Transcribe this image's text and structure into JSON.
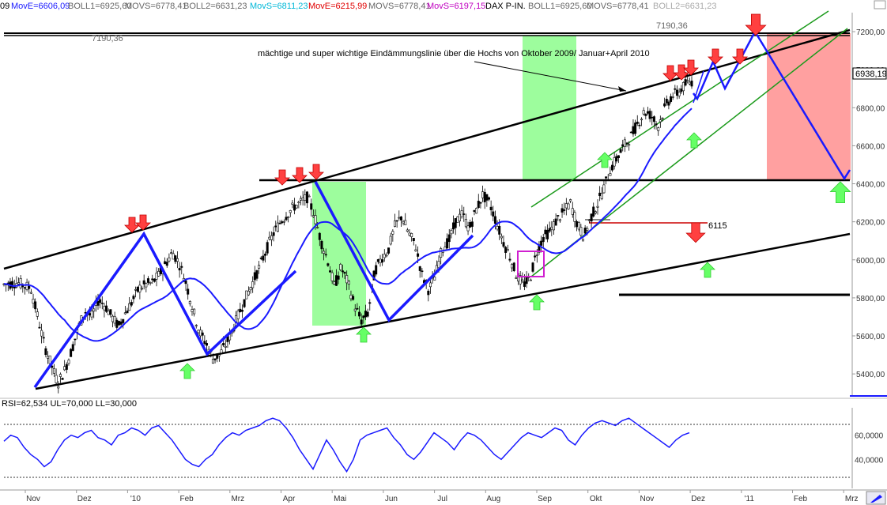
{
  "header": {
    "items": [
      {
        "text": "MovE=6606,09",
        "color": "#1a1aff"
      },
      {
        "text": "BOLL1=6925,60",
        "color": "#666666"
      },
      {
        "text": "MOVS=6778,41",
        "color": "#666666"
      },
      {
        "text": "BOLL2=6631,23",
        "color": "#666666"
      },
      {
        "text": "MovS=6811,23",
        "color": "#00b8d8"
      },
      {
        "text": "MovE=6215,99",
        "color": "#e00000"
      },
      {
        "text": "MOVS=6778,41",
        "color": "#666666"
      },
      {
        "text": "MovS=6197,15",
        "color": "#c000c0"
      },
      {
        "text": "DAX P-IN.",
        "color": "#000000"
      },
      {
        "text": "BOLL1=6925,60",
        "color": "#666666"
      },
      {
        "text": "MOVS=6778,41",
        "color": "#666666"
      },
      {
        "text": "BOLL2=6631,23",
        "color": "#aaaaaa"
      }
    ],
    "year_stub": "09"
  },
  "chart_data": {
    "type": "candlestick",
    "instrument": "DAX P-IN.",
    "ylim": [
      5280,
      7300
    ],
    "y_ticks": [
      5400,
      5600,
      5800,
      6000,
      6200,
      6400,
      6600,
      6800,
      7000,
      7200
    ],
    "y_tick_labels": [
      "5400,00",
      "5600,00",
      "5800,00",
      "6000,00",
      "6200,00",
      "6400,00",
      "6600,00",
      "6800,00",
      "7000,00",
      "7200,00"
    ],
    "x_labels": [
      "Nov",
      "Dez",
      "'10",
      "Feb",
      "Mrz",
      "Apr",
      "Mai",
      "Jun",
      "Jul",
      "Aug",
      "Sep",
      "Okt",
      "Nov",
      "Dez",
      "'11",
      "Feb",
      "Mrz"
    ],
    "last_price": "6938,19",
    "level_label_left": "7190,36",
    "level_label_right": "7190,36",
    "resistance_level": 7190.36,
    "annotation": "mächtige und super wichtige Eindämmungslinie über die Hochs von Oktober 2009/ Januar+April 2010",
    "target_label": "6115",
    "price_path": [
      [
        0,
        5870
      ],
      [
        2,
        5880
      ],
      [
        4,
        5850
      ],
      [
        5,
        5700
      ],
      [
        6,
        5550
      ],
      [
        7,
        5450
      ],
      [
        8,
        5350
      ],
      [
        9,
        5420
      ],
      [
        10,
        5520
      ],
      [
        11,
        5640
      ],
      [
        12,
        5730
      ],
      [
        13,
        5700
      ],
      [
        14,
        5790
      ],
      [
        15,
        5760
      ],
      [
        16,
        5700
      ],
      [
        17,
        5650
      ],
      [
        18,
        5720
      ],
      [
        19,
        5780
      ],
      [
        20,
        5850
      ],
      [
        21,
        5870
      ],
      [
        22,
        5880
      ],
      [
        23,
        5920
      ],
      [
        24,
        5980
      ],
      [
        25,
        6040
      ],
      [
        26,
        5980
      ],
      [
        27,
        5880
      ],
      [
        28,
        5740
      ],
      [
        29,
        5620
      ],
      [
        30,
        5560
      ],
      [
        31,
        5480
      ],
      [
        32,
        5500
      ],
      [
        33,
        5560
      ],
      [
        34,
        5640
      ],
      [
        35,
        5730
      ],
      [
        36,
        5810
      ],
      [
        37,
        5890
      ],
      [
        38,
        5970
      ],
      [
        39,
        6060
      ],
      [
        40,
        6140
      ],
      [
        41,
        6200
      ],
      [
        42,
        6240
      ],
      [
        43,
        6280
      ],
      [
        44,
        6300
      ],
      [
        45,
        6330
      ],
      [
        46,
        6240
      ],
      [
        47,
        6100
      ],
      [
        48,
        6000
      ],
      [
        49,
        5860
      ],
      [
        50,
        5960
      ],
      [
        51,
        5880
      ],
      [
        52,
        5760
      ],
      [
        53,
        5680
      ],
      [
        54,
        5720
      ],
      [
        55,
        5940
      ],
      [
        56,
        6010
      ],
      [
        57,
        6050
      ],
      [
        58,
        6180
      ],
      [
        59,
        6230
      ],
      [
        60,
        6140
      ],
      [
        61,
        6080
      ],
      [
        62,
        5920
      ],
      [
        63,
        5840
      ],
      [
        64,
        5920
      ],
      [
        65,
        6060
      ],
      [
        66,
        6100
      ],
      [
        67,
        6200
      ],
      [
        68,
        6240
      ],
      [
        69,
        6160
      ],
      [
        70,
        6260
      ],
      [
        71,
        6340
      ],
      [
        72,
        6300
      ],
      [
        73,
        6200
      ],
      [
        74,
        6100
      ],
      [
        75,
        6020
      ],
      [
        76,
        5920
      ],
      [
        77,
        5870
      ],
      [
        78,
        5900
      ],
      [
        79,
        6040
      ],
      [
        80,
        6120
      ],
      [
        81,
        6150
      ],
      [
        82,
        6210
      ],
      [
        83,
        6250
      ],
      [
        84,
        6300
      ],
      [
        85,
        6190
      ],
      [
        86,
        6120
      ],
      [
        87,
        6220
      ],
      [
        88,
        6290
      ],
      [
        89,
        6380
      ],
      [
        90,
        6480
      ],
      [
        91,
        6540
      ],
      [
        92,
        6600
      ],
      [
        93,
        6650
      ],
      [
        94,
        6720
      ],
      [
        95,
        6780
      ],
      [
        96,
        6760
      ],
      [
        97,
        6700
      ],
      [
        98,
        6800
      ],
      [
        99,
        6860
      ],
      [
        100,
        6880
      ],
      [
        101,
        6920
      ],
      [
        102,
        6938
      ]
    ],
    "rsi": {
      "label": "RSI=62,534 UL=70,000 LL=30,000",
      "ylim": [
        20,
        80
      ],
      "upper": 70,
      "lower": 30,
      "tick_labels": [
        "60,0000",
        "40,0000"
      ],
      "tick_values": [
        60,
        40
      ],
      "values": [
        55,
        60,
        58,
        50,
        44,
        40,
        34,
        38,
        48,
        56,
        60,
        58,
        62,
        64,
        58,
        56,
        52,
        60,
        62,
        66,
        64,
        60,
        66,
        68,
        62,
        56,
        48,
        40,
        36,
        34,
        40,
        44,
        52,
        58,
        62,
        60,
        64,
        66,
        68,
        72,
        74,
        72,
        66,
        58,
        48,
        40,
        32,
        44,
        56,
        48,
        38,
        30,
        40,
        56,
        60,
        62,
        64,
        66,
        58,
        52,
        44,
        40,
        46,
        54,
        62,
        58,
        54,
        48,
        56,
        62,
        60,
        56,
        50,
        44,
        40,
        46,
        52,
        58,
        62,
        60,
        58,
        62,
        66,
        64,
        56,
        52,
        60,
        66,
        70,
        72,
        70,
        68,
        72,
        74,
        70,
        66,
        62,
        58,
        54,
        50,
        56,
        60,
        62
      ]
    }
  }
}
